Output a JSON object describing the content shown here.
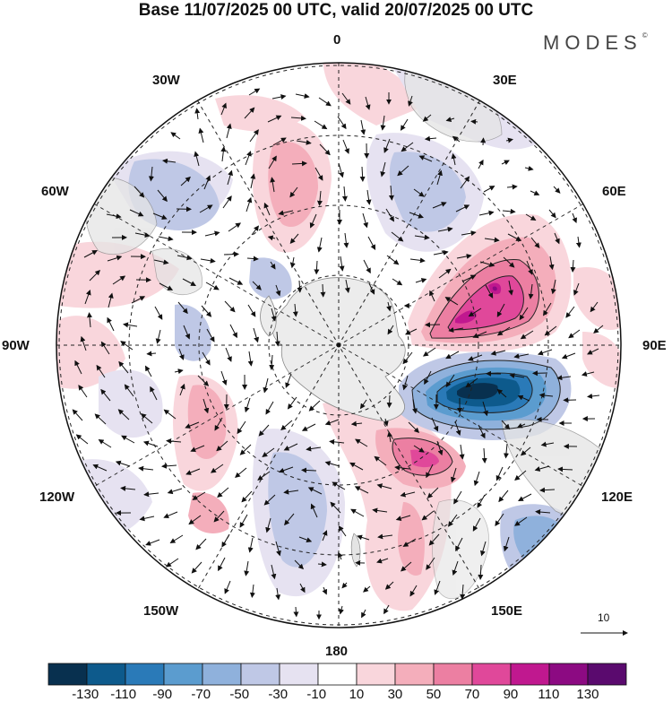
{
  "title": "Base 11/07/2025 00 UTC, valid 20/07/2025 00 UTC",
  "logo": {
    "text": "MODES",
    "mark": "©"
  },
  "map": {
    "projection": "south-polar-stereographic",
    "longitude_labels": {
      "lon0": "0",
      "lon30e": "30E",
      "lon60e": "60E",
      "lon90e": "90E",
      "lon120e": "120E",
      "lon150e": "150E",
      "lon180": "180",
      "lon150w": "150W",
      "lon120w": "120W",
      "lon90w": "90W",
      "lon60w": "60W",
      "lon30w": "30W"
    },
    "wind_reference": {
      "label": "10"
    },
    "anomalies": [
      {
        "sign": "positive",
        "peak": 110,
        "region": "near 60E-80E"
      },
      {
        "sign": "negative",
        "peak": -130,
        "region": "near 100E"
      },
      {
        "sign": "positive",
        "peak": 70,
        "region": "near 150E"
      },
      {
        "sign": "negative",
        "peak": -50,
        "region": "near 130E"
      },
      {
        "sign": "positive",
        "peak": 50,
        "region": "near 105W"
      }
    ]
  },
  "colorbar": {
    "labels": [
      "-130",
      "-110",
      "-90",
      "-70",
      "-50",
      "-30",
      "-10",
      "10",
      "30",
      "50",
      "70",
      "90",
      "110",
      "130"
    ],
    "colors": [
      "#08304f",
      "#0d5a8c",
      "#2a7ab8",
      "#5b9ccf",
      "#8fb1dc",
      "#bfc8e6",
      "#e6e2f1",
      "#ffffff",
      "#f9d6dc",
      "#f4aebb",
      "#ec7fa2",
      "#e0489a",
      "#c0188f",
      "#8c0a82",
      "#5a0a6e"
    ]
  }
}
